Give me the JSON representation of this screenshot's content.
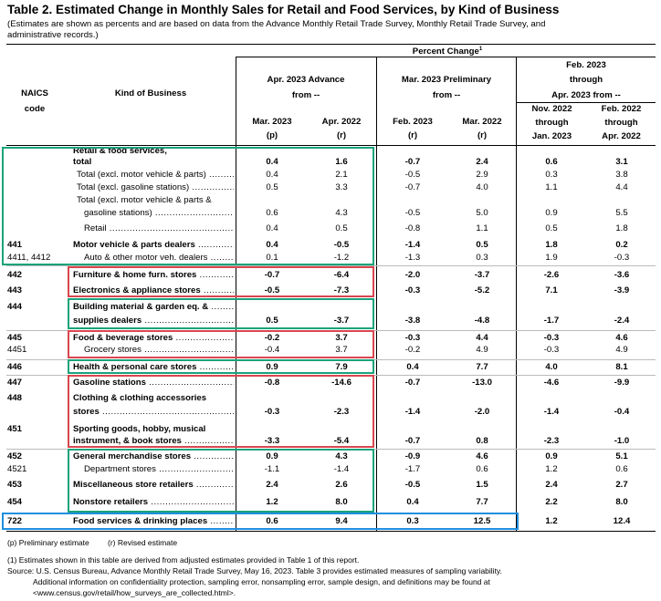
{
  "title": "Table 2.  Estimated Change in Monthly Sales for Retail and Food Services, by Kind of Business",
  "subtitle": "(Estimates are shown as percents and are based on data from the Advance Monthly Retail Trade Survey, Monthly Retail Trade Survey, and administrative records.)",
  "header": {
    "naics": "NAICS",
    "code": "code",
    "kind": "Kind of Business",
    "percent_change": "Percent Change",
    "percent_change_sup": "1",
    "group1_line1": "Apr. 2023 Advance",
    "group1_line2": "from --",
    "group2_line1": "Mar. 2023 Preliminary",
    "group2_line2": "from --",
    "group3_line1": "Feb. 2023",
    "group3_line2": "through",
    "group3_line3": "Apr. 2023 from --",
    "col1_line1": "Mar. 2023",
    "col1_line2": "(p)",
    "col2_line1": "Apr. 2022",
    "col2_line2": "(r)",
    "col3_line1": "Feb. 2023",
    "col3_line2": "(r)",
    "col4_line1": "Mar. 2022",
    "col4_line2": "(r)",
    "col5_line1": "Nov. 2022",
    "col5_line2": "through",
    "col5_line3": "Jan. 2023",
    "col6_line1": "Feb. 2022",
    "col6_line2": "through",
    "col6_line3": "Apr. 2022"
  },
  "rows": [
    {
      "code": "",
      "kind": "Retail & food services,",
      "v": [
        "",
        "",
        "",
        "",
        "",
        ""
      ],
      "bold": true
    },
    {
      "code": "",
      "kind": "total",
      "v": [
        "0.4",
        "1.6",
        "-0.7",
        "2.4",
        "0.6",
        "3.1"
      ],
      "bold": true
    },
    {
      "code": "",
      "kind": "Total (excl. motor vehicle & parts)",
      "v": [
        "0.4",
        "2.1",
        "-0.5",
        "2.9",
        "0.3",
        "3.8"
      ],
      "bold": false
    },
    {
      "code": "",
      "kind": "Total (excl. gasoline stations)",
      "v": [
        "0.5",
        "3.3",
        "-0.7",
        "4.0",
        "1.1",
        "4.4"
      ],
      "bold": false
    },
    {
      "code": "",
      "kind": "Total (excl. motor vehicle & parts &",
      "v": [
        "",
        "",
        "",
        "",
        "",
        ""
      ],
      "bold": false
    },
    {
      "code": "",
      "kind": "gasoline stations)",
      "v": [
        "0.6",
        "4.3",
        "-0.5",
        "5.0",
        "0.9",
        "5.5"
      ],
      "bold": false
    },
    {
      "code": "",
      "kind": "Retail",
      "v": [
        "0.4",
        "0.5",
        "-0.8",
        "1.1",
        "0.5",
        "1.8"
      ],
      "bold": false
    },
    {
      "code": "441",
      "kind": "Motor vehicle & parts dealers",
      "v": [
        "0.4",
        "-0.5",
        "-1.4",
        "0.5",
        "1.8",
        "0.2"
      ],
      "bold": true
    },
    {
      "code": "4411, 4412",
      "kind": "Auto & other motor veh. dealers",
      "v": [
        "0.1",
        "-1.2",
        "-1.3",
        "0.3",
        "1.9",
        "-0.3"
      ],
      "bold": false
    },
    {
      "code": "442",
      "kind": "Furniture & home furn. stores",
      "v": [
        "-0.7",
        "-6.4",
        "-2.0",
        "-3.7",
        "-2.6",
        "-3.6"
      ],
      "bold": true
    },
    {
      "code": "443",
      "kind": "Electronics & appliance stores",
      "v": [
        "-0.5",
        "-7.3",
        "-0.3",
        "-5.2",
        "7.1",
        "-3.9"
      ],
      "bold": true
    },
    {
      "code": "444",
      "kind": "Building material & garden eq. &",
      "v": [
        "",
        "",
        "",
        "",
        "",
        ""
      ],
      "bold": true
    },
    {
      "code": "",
      "kind": "supplies dealers",
      "v": [
        "0.5",
        "-3.7",
        "-3.8",
        "-4.8",
        "-1.7",
        "-2.4"
      ],
      "bold": true
    },
    {
      "code": "445",
      "kind": "Food & beverage stores",
      "v": [
        "-0.2",
        "3.7",
        "-0.3",
        "4.4",
        "-0.3",
        "4.6"
      ],
      "bold": true
    },
    {
      "code": "4451",
      "kind": "Grocery stores",
      "v": [
        "-0.4",
        "3.7",
        "-0.2",
        "4.9",
        "-0.3",
        "4.9"
      ],
      "bold": false
    },
    {
      "code": "446",
      "kind": "Health & personal care stores",
      "v": [
        "0.9",
        "7.9",
        "0.4",
        "7.7",
        "4.0",
        "8.1"
      ],
      "bold": true
    },
    {
      "code": "447",
      "kind": "Gasoline stations",
      "v": [
        "-0.8",
        "-14.6",
        "-0.7",
        "-13.0",
        "-4.6",
        "-9.9"
      ],
      "bold": true
    },
    {
      "code": "448",
      "kind": "Clothing & clothing accessories",
      "v": [
        "",
        "",
        "",
        "",
        "",
        ""
      ],
      "bold": true
    },
    {
      "code": "",
      "kind": "stores",
      "v": [
        "-0.3",
        "-2.3",
        "-1.4",
        "-2.0",
        "-1.4",
        "-0.4"
      ],
      "bold": true
    },
    {
      "code": "451",
      "kind": "Sporting goods, hobby, musical",
      "v": [
        "",
        "",
        "",
        "",
        "",
        ""
      ],
      "bold": true
    },
    {
      "code": "",
      "kind": "instrument, & book stores",
      "v": [
        "-3.3",
        "-5.4",
        "-0.7",
        "0.8",
        "-2.3",
        "-1.0"
      ],
      "bold": true
    },
    {
      "code": "452",
      "kind": "General merchandise stores",
      "v": [
        "0.9",
        "4.3",
        "-0.9",
        "4.6",
        "0.9",
        "5.1"
      ],
      "bold": true
    },
    {
      "code": "4521",
      "kind": "Department stores",
      "v": [
        "-1.1",
        "-1.4",
        "-1.7",
        "0.6",
        "1.2",
        "0.6"
      ],
      "bold": false
    },
    {
      "code": "453",
      "kind": "Miscellaneous store retailers",
      "v": [
        "2.4",
        "2.6",
        "-0.5",
        "1.5",
        "2.4",
        "2.7"
      ],
      "bold": true
    },
    {
      "code": "454",
      "kind": "Nonstore retailers",
      "v": [
        "1.2",
        "8.0",
        "0.4",
        "7.7",
        "2.2",
        "8.0"
      ],
      "bold": true
    },
    {
      "code": "722",
      "kind": "Food services & drinking places",
      "v": [
        "0.6",
        "9.4",
        "0.3",
        "12.5",
        "1.2",
        "12.4"
      ],
      "bold": true
    }
  ],
  "legend": {
    "p": "(p)  Preliminary estimate",
    "r": "(r)  Revised estimate"
  },
  "footnotes": {
    "note1": "(1)  Estimates shown in this table are derived from adjusted estimates provided  in Table 1 of this report.",
    "source1": "Source:  U.S. Census Bureau, Advance Monthly Retail Trade Survey,  May 16, 2023. Table 3 provides estimated measures of sampling variability.",
    "source2": "Additional information on confidentiality protection, sampling error, nonsampling error, sample design, and definitions may be found at",
    "source3": "<www.census.gov/retail/how_surveys_are_collected.html>."
  },
  "highlight_colors": {
    "green": "#1aa37a",
    "red": "#d9464e",
    "blue": "#1f8fe0"
  }
}
